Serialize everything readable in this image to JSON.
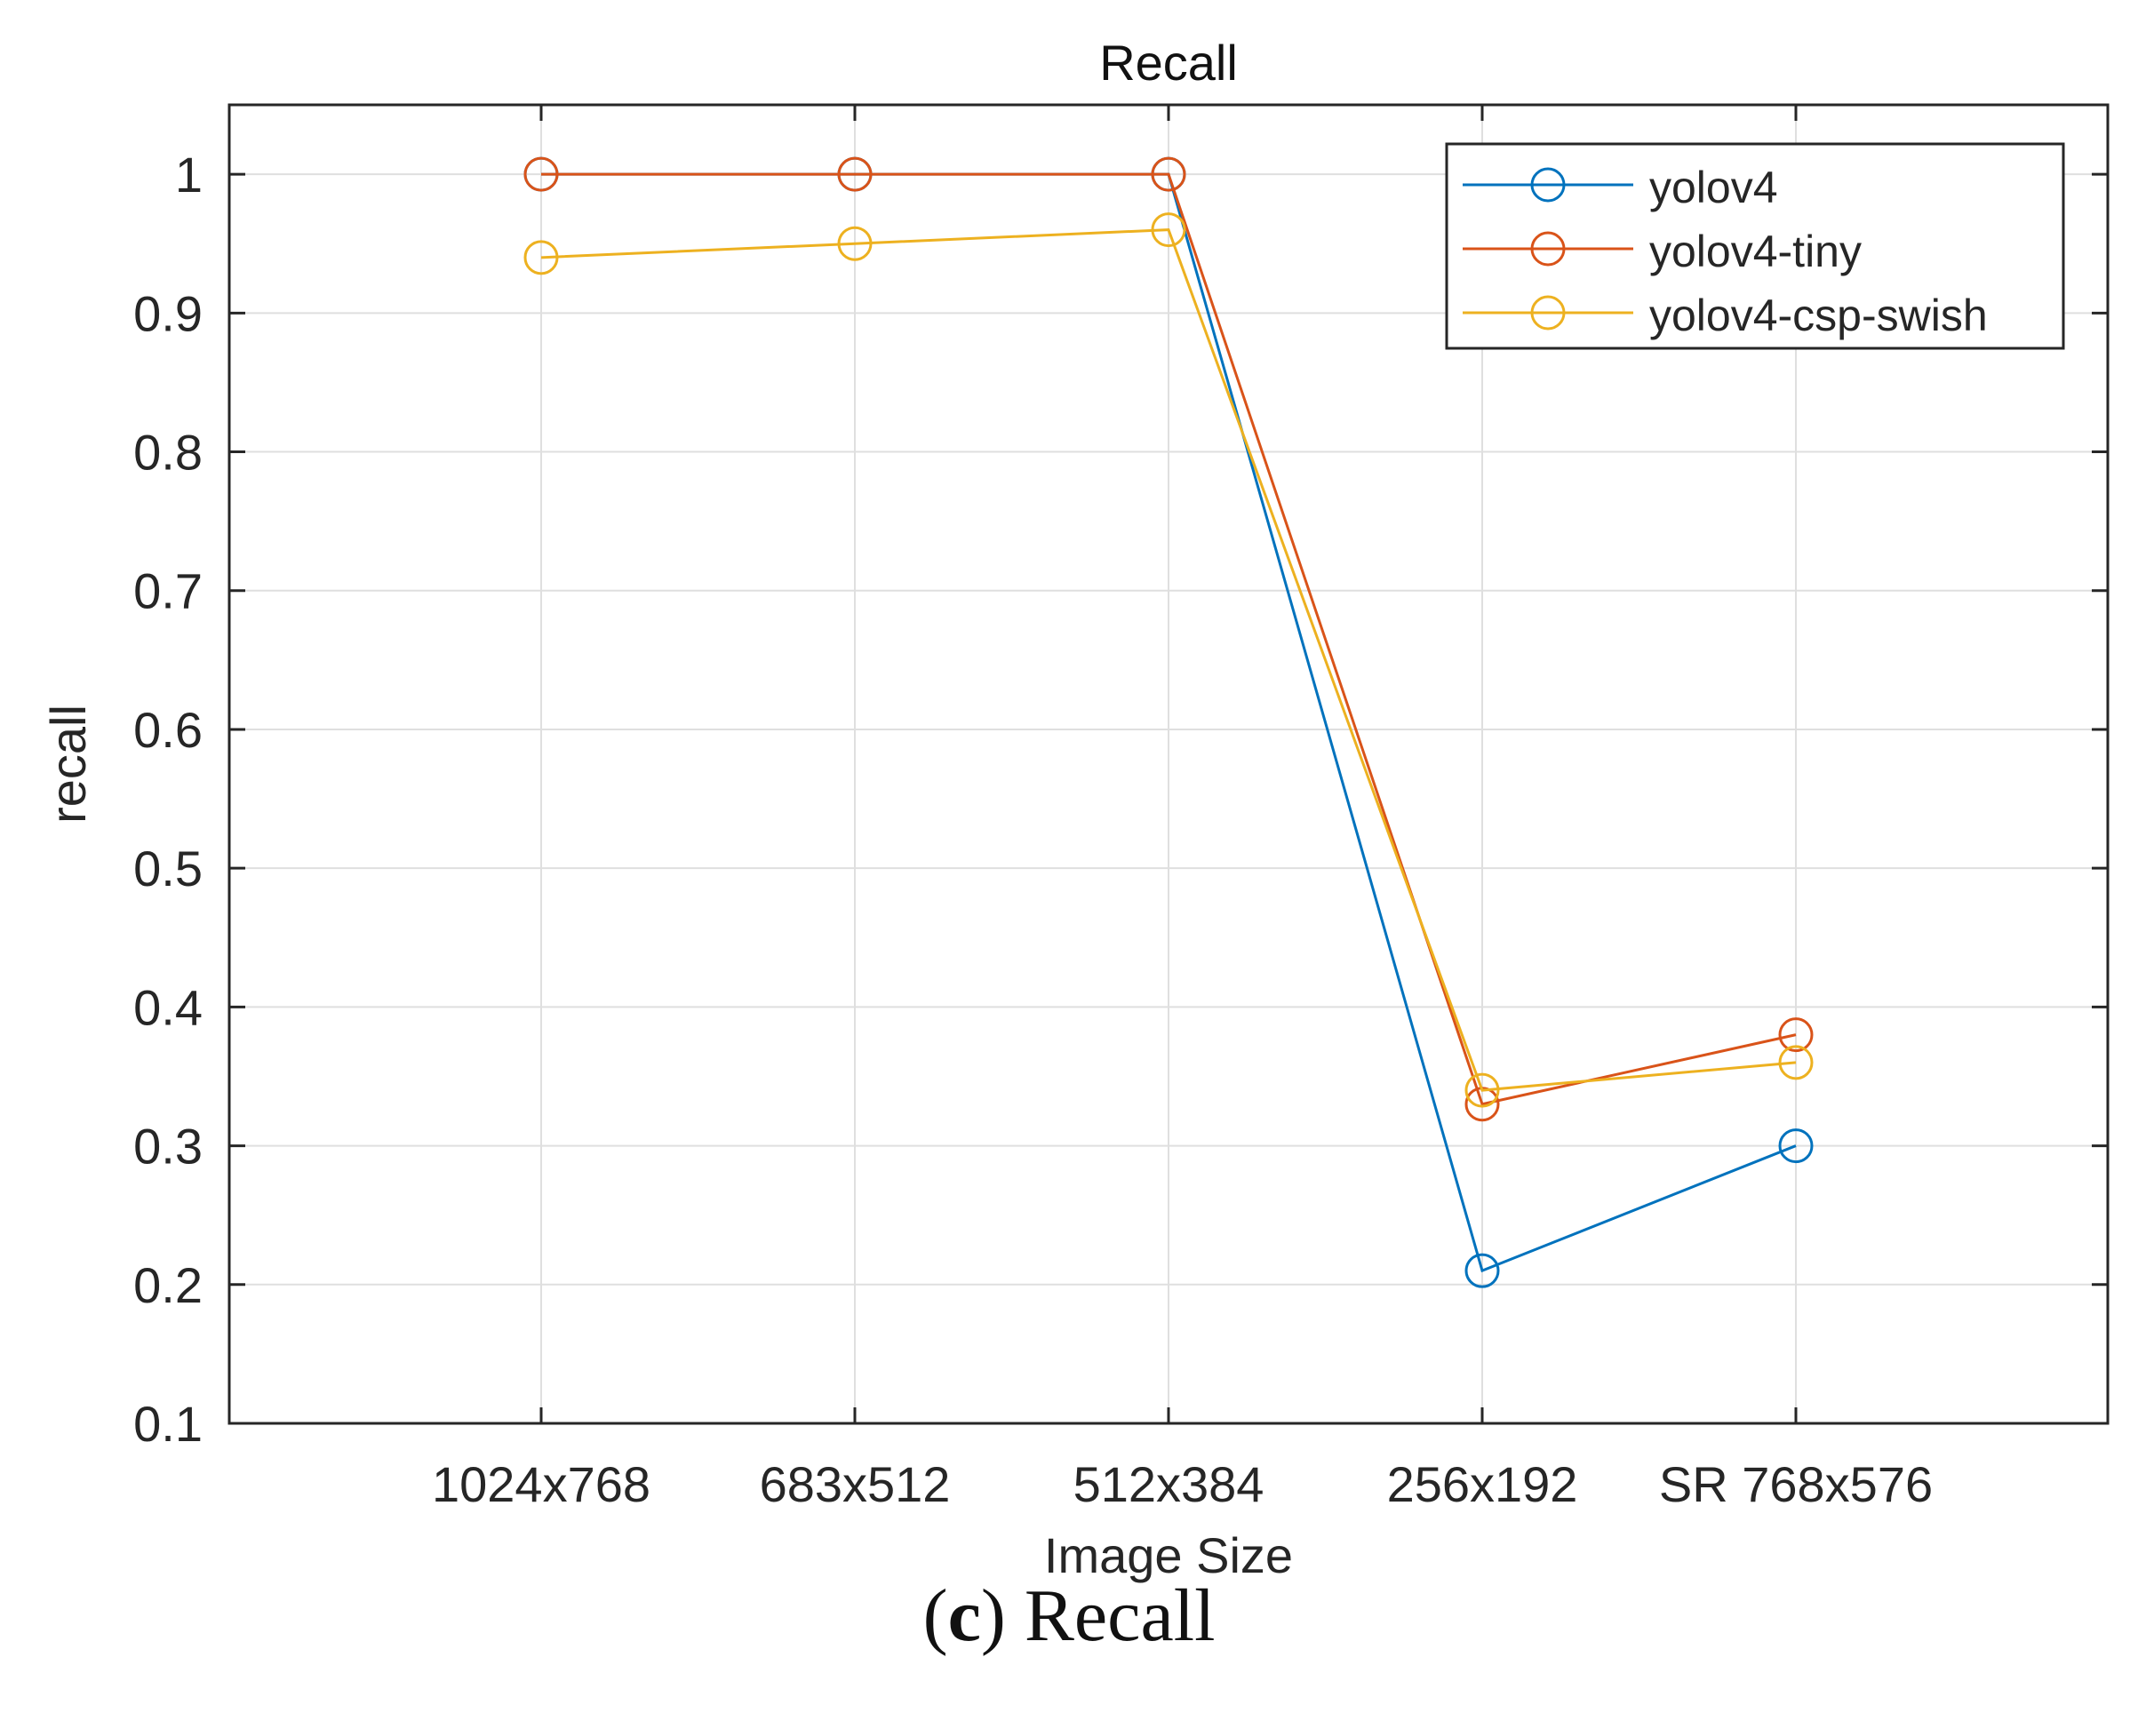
{
  "chart_data": {
    "type": "line",
    "title": "Recall",
    "xlabel": "Image Size",
    "ylabel": "recall",
    "categories": [
      "1024x768",
      "683x512",
      "512x384",
      "256x192",
      "SR 768x576"
    ],
    "ylim": [
      0.1,
      1.05
    ],
    "yticks": [
      0.1,
      0.2,
      0.3,
      0.4,
      0.5,
      0.6,
      0.7,
      0.8,
      0.9,
      1
    ],
    "ytick_labels": [
      "0.1",
      "0.2",
      "0.3",
      "0.4",
      "0.5",
      "0.6",
      "0.7",
      "0.8",
      "0.9",
      "1"
    ],
    "grid": true,
    "legend_position": "top-right",
    "marker": "circle-open",
    "series": [
      {
        "name": "yolov4",
        "color": "#0072BD",
        "values": [
          1.0,
          1.0,
          1.0,
          0.21,
          0.3
        ]
      },
      {
        "name": "yolov4-tiny",
        "color": "#D95319",
        "values": [
          1.0,
          1.0,
          1.0,
          0.33,
          0.38
        ]
      },
      {
        "name": "yolov4-csp-swish",
        "color": "#EDB120",
        "values": [
          0.94,
          0.95,
          0.96,
          0.34,
          0.36
        ]
      }
    ]
  },
  "caption": {
    "open_paren": "(",
    "letter": "c",
    "rest": ") Recall"
  }
}
